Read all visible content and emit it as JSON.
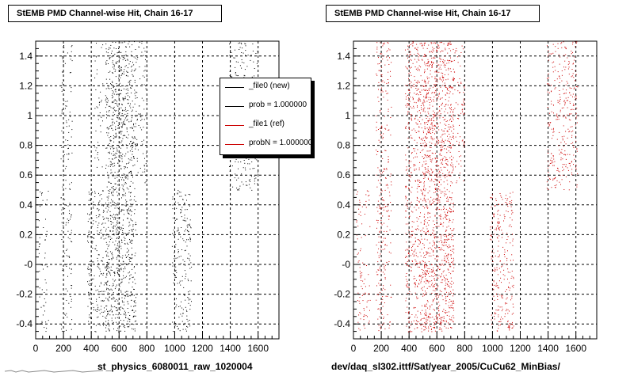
{
  "chart_data": [
    {
      "type": "scatter",
      "title": "StEMB PMD Channel-wise Hit, Chain 16-17",
      "xlabel": "st_physics_6080011_raw_1020004",
      "ylabel": "",
      "xlim": [
        0,
        1750
      ],
      "ylim": [
        -0.5,
        1.5
      ],
      "x_ticks": [
        "0",
        "200",
        "400",
        "600",
        "800",
        "1000",
        "1200",
        "1400",
        "1600"
      ],
      "y_ticks": [
        "-0.4",
        "-0.2",
        "-0",
        "0.2",
        "0.4",
        "0.6",
        "0.8",
        "1",
        "1.2",
        "1.4"
      ],
      "grid": true,
      "color": "#000000",
      "bands": [
        {
          "x": [
            20,
            90
          ],
          "y": [
            -0.45,
            0.5
          ],
          "density": 0.5
        },
        {
          "x": [
            180,
            260
          ],
          "y": [
            -0.45,
            1.5
          ],
          "density": 0.6
        },
        {
          "x": [
            370,
            520
          ],
          "y": [
            -0.45,
            0.5
          ],
          "density": 1.0
        },
        {
          "x": [
            420,
            480
          ],
          "y": [
            0.65,
            1.5
          ],
          "density": 0.5
        },
        {
          "x": [
            500,
            720
          ],
          "y": [
            -0.45,
            1.5
          ],
          "density": 1.6
        },
        {
          "x": [
            720,
            800
          ],
          "y": [
            0.55,
            1.5
          ],
          "density": 0.6
        },
        {
          "x": [
            980,
            1120
          ],
          "y": [
            -0.45,
            0.5
          ],
          "density": 0.9
        },
        {
          "x": [
            1390,
            1600
          ],
          "y": [
            0.5,
            1.5
          ],
          "density": 0.8
        }
      ]
    },
    {
      "type": "scatter",
      "title": "StEMB PMD Channel-wise Hit, Chain 16-17",
      "xlabel": "dev/daq_sl302.ittf/Sat/year_2005/CuCu62_MinBias/",
      "ylabel": "",
      "xlim": [
        0,
        1750
      ],
      "ylim": [
        -0.5,
        1.5
      ],
      "x_ticks": [
        "0",
        "200",
        "400",
        "600",
        "800",
        "1000",
        "1200",
        "1400",
        "1600"
      ],
      "y_ticks": [
        "-0.4",
        "-0.2",
        "-0",
        "0.2",
        "0.4",
        "0.6",
        "0.8",
        "1",
        "1.2",
        "1.4"
      ],
      "grid": true,
      "color": "#cc0000",
      "bands": [
        {
          "x": [
            20,
            120
          ],
          "y": [
            -0.45,
            0.5
          ],
          "density": 0.6
        },
        {
          "x": [
            160,
            270
          ],
          "y": [
            -0.45,
            1.5
          ],
          "density": 0.8
        },
        {
          "x": [
            370,
            520
          ],
          "y": [
            -0.45,
            1.5
          ],
          "density": 1.2
        },
        {
          "x": [
            500,
            720
          ],
          "y": [
            -0.45,
            1.5
          ],
          "density": 1.8
        },
        {
          "x": [
            720,
            800
          ],
          "y": [
            0.55,
            1.5
          ],
          "density": 0.6
        },
        {
          "x": [
            980,
            1150
          ],
          "y": [
            -0.45,
            0.5
          ],
          "density": 1.0
        },
        {
          "x": [
            1390,
            1610
          ],
          "y": [
            0.5,
            1.5
          ],
          "density": 0.9
        }
      ]
    }
  ],
  "legend": {
    "entries": [
      {
        "label": "_file0 (new)",
        "color": "#000000"
      },
      {
        "label": "prob = 1.000000",
        "color": "#000000"
      },
      {
        "label": "_file1 (ref)",
        "color": "#cc0000"
      },
      {
        "label": "probN = 1.000000",
        "color": "#cc0000"
      }
    ]
  }
}
